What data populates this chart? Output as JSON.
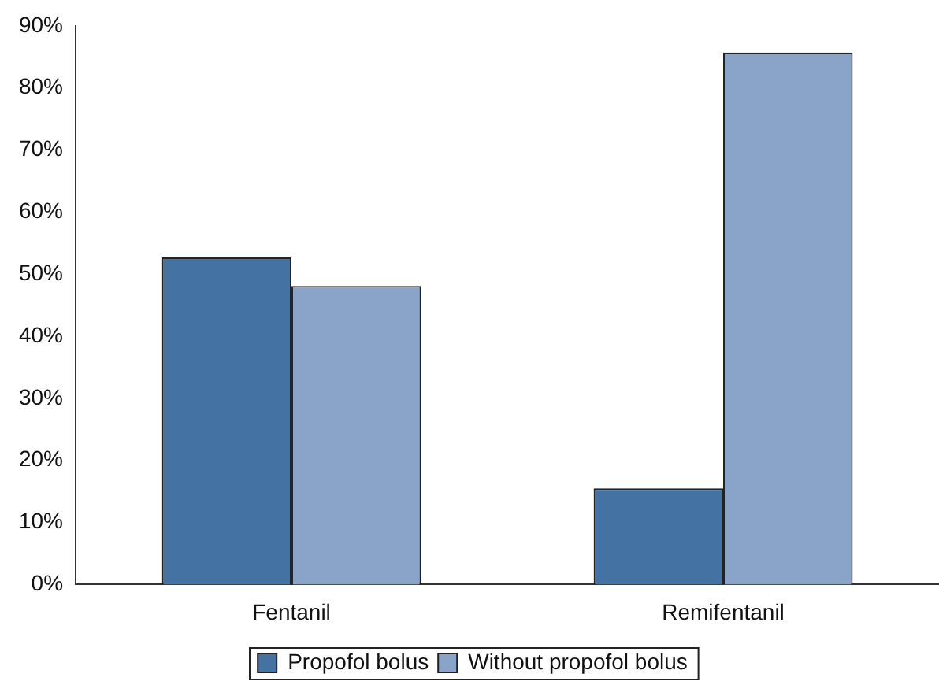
{
  "chart_data": {
    "type": "bar",
    "categories": [
      "Fentanil",
      "Remifentanil"
    ],
    "series": [
      {
        "name": "Propofol bolus",
        "color": "#4472a2",
        "values": [
          52.7,
          15.5
        ]
      },
      {
        "name": "Without propofol bolus",
        "color": "#8aa3c9",
        "values": [
          48.1,
          85.7
        ]
      }
    ],
    "ylim": [
      0,
      90
    ],
    "yticks": [
      {
        "value": 0,
        "label": "0%"
      },
      {
        "value": 10,
        "label": "10%"
      },
      {
        "value": 20,
        "label": "20%"
      },
      {
        "value": 30,
        "label": "30%"
      },
      {
        "value": 40,
        "label": "40%"
      },
      {
        "value": 50,
        "label": "50%"
      },
      {
        "value": 60,
        "label": "60%"
      },
      {
        "value": 70,
        "label": "70%"
      },
      {
        "value": 80,
        "label": "80%"
      },
      {
        "value": 90,
        "label": "90%"
      }
    ],
    "grid": false,
    "legend": "bottom"
  }
}
